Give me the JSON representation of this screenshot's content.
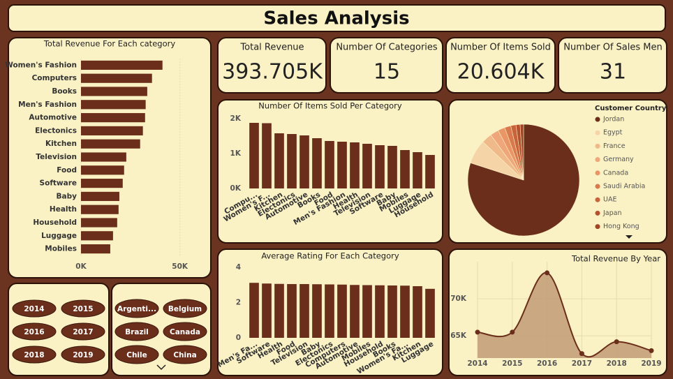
{
  "title": "Sales Analysis",
  "kpis": [
    {
      "label": "Total Revenue",
      "value": "393.705K"
    },
    {
      "label": "Number Of Categories",
      "value": "15"
    },
    {
      "label": "Number Of Items Sold",
      "value": "20.604K"
    },
    {
      "label": "Number Of Sales Men",
      "value": "31"
    }
  ],
  "slicers": {
    "years": [
      "2014",
      "2015",
      "2016",
      "2017",
      "2018",
      "2019"
    ],
    "countries": [
      "Argenti...",
      "Belgium",
      "Brazil",
      "Canada",
      "Chile",
      "China"
    ]
  },
  "chart_data": [
    {
      "type": "hbar",
      "title": "Total Revenue For Each category",
      "categories": [
        "Women's Fashion",
        "Computers",
        "Books",
        "Men's Fashion",
        "Automotive",
        "Electonics",
        "Kitchen",
        "Television",
        "Food",
        "Software",
        "Baby",
        "Health",
        "Household",
        "Luggage",
        "Mobiles"
      ],
      "values": [
        41200,
        35900,
        33500,
        32700,
        32400,
        31300,
        29900,
        22900,
        21800,
        21100,
        19400,
        19000,
        18300,
        16200,
        14800
      ],
      "color": "#6b2e1a",
      "xlim": [
        0,
        60000
      ],
      "xticks": [
        {
          "value": 0,
          "label": "0K"
        },
        {
          "value": 50000,
          "label": "50K"
        }
      ],
      "grid": true
    },
    {
      "type": "bar",
      "title": "Number Of Items Sold Per Category",
      "categories": [
        "Compu...",
        "Women's F...",
        "Kitchen",
        "Electonics",
        "Automotive",
        "Books",
        "Food",
        "Men's Fashion",
        "Health",
        "Television",
        "Software",
        "Baby",
        "Mobiles",
        "Luggage",
        "Household"
      ],
      "values": [
        1880,
        1870,
        1580,
        1560,
        1520,
        1440,
        1360,
        1340,
        1320,
        1280,
        1240,
        1220,
        1100,
        1040,
        960
      ],
      "color": "#6b2e1a",
      "ylim": [
        0,
        2000
      ],
      "yticks": [
        {
          "value": 0,
          "label": "0K"
        },
        {
          "value": 1000,
          "label": "1K"
        },
        {
          "value": 2000,
          "label": "2K"
        }
      ],
      "grid": false
    },
    {
      "type": "pie",
      "legend_title": "Customer Country",
      "categories": [
        "Jordan",
        "Egypt",
        "France",
        "Germany",
        "Canada",
        "Saudi Arabia",
        "UAE",
        "Japan",
        "Hong Kong"
      ],
      "values": [
        80,
        7,
        3,
        2.5,
        2,
        1.8,
        1.5,
        1.2,
        1
      ],
      "colors": [
        "#6b2e1a",
        "#f5d4a8",
        "#f0b98a",
        "#eea67a",
        "#e99566",
        "#d97a4e",
        "#c8633c",
        "#b4522f",
        "#a04525"
      ],
      "legend": "right"
    },
    {
      "type": "bar",
      "title": "Average Rating For Each Category",
      "categories": [
        "Men's Fa...",
        "Software",
        "Health",
        "Food",
        "Television",
        "Baby",
        "Electonics",
        "Computers",
        "Automotive",
        "Mobiles",
        "Household",
        "Books",
        "Women's Fa...",
        "Kitchen",
        "Luggage"
      ],
      "values": [
        3.12,
        3.08,
        3.06,
        3.05,
        3.05,
        3.04,
        3.03,
        3.02,
        3.0,
        2.99,
        2.98,
        2.97,
        2.96,
        2.93,
        2.78
      ],
      "color": "#6b2e1a",
      "ylim": [
        0,
        4
      ],
      "yticks": [
        0,
        2,
        4
      ],
      "grid": false
    },
    {
      "type": "area",
      "title": "Total Revenue By Year",
      "x": [
        2014,
        2015,
        2016,
        2017,
        2018,
        2019
      ],
      "values": [
        65500,
        65500,
        73500,
        62600,
        64200,
        63000
      ],
      "color": "#6b2e1a",
      "fill": "#c4a07a",
      "xlim": [
        2014,
        2019
      ],
      "ylim": [
        62000,
        75000
      ],
      "yticks": [
        {
          "value": 65000,
          "label": "65K"
        },
        {
          "value": 70000,
          "label": "70K"
        }
      ],
      "grid": true
    }
  ]
}
